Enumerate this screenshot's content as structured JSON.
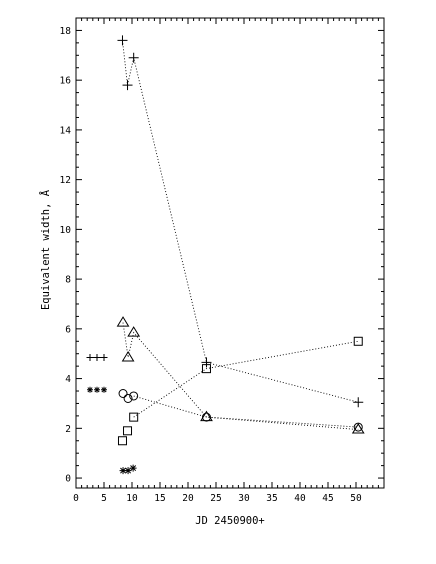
{
  "chart_data": {
    "type": "scatter",
    "title": "",
    "xlabel": "JD 2450900+",
    "ylabel": "Equivalent width, Å",
    "xlim": [
      0,
      55
    ],
    "ylim": [
      -0.4,
      18.5
    ],
    "x_ticks": [
      0,
      5,
      10,
      15,
      20,
      25,
      30,
      35,
      40,
      45,
      50
    ],
    "y_ticks": [
      0,
      2,
      4,
      6,
      8,
      10,
      12,
      14,
      16,
      18
    ],
    "x_tick_labels": [
      "0",
      "5",
      "10",
      "15",
      "20",
      "25",
      "30",
      "35",
      "40",
      "45",
      "50"
    ],
    "y_tick_labels": [
      "0",
      "2",
      "4",
      "6",
      "8",
      "10",
      "12",
      "14",
      "16",
      "18"
    ],
    "grid": false,
    "legend": {
      "placement": "left",
      "entries": [
        {
          "marker": "plus",
          "symbols": "+++",
          "y": 4.85
        },
        {
          "marker": "asterisk",
          "symbols": "***",
          "y": 3.55
        }
      ]
    },
    "series": [
      {
        "marker": "plus",
        "points": [
          [
            8.3,
            17.6
          ],
          [
            9.2,
            15.8
          ],
          [
            10.3,
            16.9
          ],
          [
            23.3,
            4.65
          ],
          [
            50.4,
            3.05
          ]
        ],
        "connect_order": [
          0,
          1,
          2,
          3,
          4
        ]
      },
      {
        "marker": "triangle",
        "points": [
          [
            8.4,
            6.25
          ],
          [
            9.3,
            4.85
          ],
          [
            10.3,
            5.85
          ],
          [
            23.3,
            2.45
          ],
          [
            50.4,
            1.95
          ]
        ],
        "connect_order": [
          0,
          1,
          2,
          3,
          4
        ]
      },
      {
        "marker": "circle",
        "points": [
          [
            8.4,
            3.4
          ],
          [
            9.3,
            3.2
          ],
          [
            10.3,
            3.3
          ],
          [
            23.3,
            2.45
          ],
          [
            50.4,
            2.05
          ]
        ],
        "connect_order": [
          2,
          3,
          4
        ]
      },
      {
        "marker": "square",
        "points": [
          [
            8.3,
            1.5
          ],
          [
            9.2,
            1.9
          ],
          [
            10.3,
            2.45
          ],
          [
            23.3,
            4.4
          ],
          [
            50.4,
            5.5
          ]
        ],
        "connect_order": [
          2,
          3,
          4
        ]
      },
      {
        "marker": "asterisk",
        "points": [
          [
            8.4,
            0.3
          ],
          [
            9.3,
            0.3
          ],
          [
            10.2,
            0.4
          ]
        ],
        "connect_order": []
      }
    ]
  }
}
